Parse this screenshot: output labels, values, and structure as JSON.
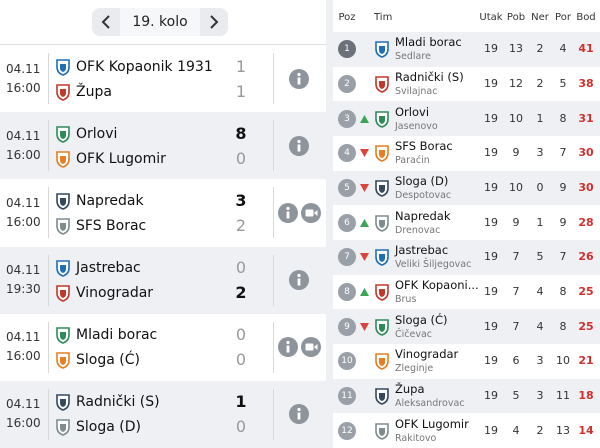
{
  "round_nav": {
    "label": "19. kolo"
  },
  "matches": [
    {
      "date": "04.11",
      "time": "16:00",
      "home": {
        "name": "OFK Kopaonik 1931",
        "score": 1
      },
      "away": {
        "name": "Župa",
        "score": 1
      },
      "video": false
    },
    {
      "date": "04.11",
      "time": "16:00",
      "home": {
        "name": "Orlovi",
        "score": 8
      },
      "away": {
        "name": "OFK Lugomir",
        "score": 0
      },
      "video": false
    },
    {
      "date": "04.11",
      "time": "16:00",
      "home": {
        "name": "Napredak",
        "score": 3
      },
      "away": {
        "name": "SFS Borac",
        "score": 2
      },
      "video": true
    },
    {
      "date": "04.11",
      "time": "19:30",
      "home": {
        "name": "Jastrebac",
        "score": 0
      },
      "away": {
        "name": "Vinogradar",
        "score": 2
      },
      "video": false
    },
    {
      "date": "04.11",
      "time": "16:00",
      "home": {
        "name": "Mladi borac",
        "score": 0
      },
      "away": {
        "name": "Sloga (Ć)",
        "score": 0
      },
      "video": true
    },
    {
      "date": "04.11",
      "time": "16:00",
      "home": {
        "name": "Radnički (S)",
        "score": 1
      },
      "away": {
        "name": "Sloga (D)",
        "score": 0
      },
      "video": false
    }
  ],
  "standings": {
    "columns": [
      "Poz",
      "Tim",
      "Utak",
      "Pob",
      "Ner",
      "Por",
      "Bod"
    ],
    "rows": [
      {
        "pos": 1,
        "team": "Mladi borac",
        "city": "Sedlare",
        "played": 19,
        "won": 13,
        "drawn": 2,
        "lost": 4,
        "points": 41
      },
      {
        "pos": 2,
        "team": "Radnički (S)",
        "city": "Svilajnac",
        "played": 19,
        "won": 12,
        "drawn": 2,
        "lost": 5,
        "points": 38
      },
      {
        "pos": 3,
        "team": "Orlovi",
        "city": "Jasenovo",
        "trend": "up",
        "played": 19,
        "won": 10,
        "drawn": 1,
        "lost": 8,
        "points": 31
      },
      {
        "pos": 4,
        "team": "SFS Borac",
        "city": "Paraćin",
        "trend": "down",
        "played": 19,
        "won": 9,
        "drawn": 3,
        "lost": 7,
        "points": 30
      },
      {
        "pos": 5,
        "team": "Sloga (D)",
        "city": "Despotovac",
        "trend": "down",
        "played": 19,
        "won": 10,
        "drawn": 0,
        "lost": 9,
        "points": 30
      },
      {
        "pos": 6,
        "team": "Napredak",
        "city": "Drenovac",
        "trend": "up",
        "played": 19,
        "won": 9,
        "drawn": 1,
        "lost": 9,
        "points": 28
      },
      {
        "pos": 7,
        "team": "Jastrebac",
        "city": "Veliki Šiljegovac",
        "trend": "down",
        "played": 19,
        "won": 7,
        "drawn": 5,
        "lost": 7,
        "points": 26
      },
      {
        "pos": 8,
        "team": "OFK Kopaoni...",
        "city": "Brus",
        "trend": "up",
        "played": 19,
        "won": 7,
        "drawn": 4,
        "lost": 8,
        "points": 25
      },
      {
        "pos": 9,
        "team": "Sloga (Ć)",
        "city": "Čičevac",
        "trend": "down",
        "played": 19,
        "won": 7,
        "drawn": 4,
        "lost": 8,
        "points": 25
      },
      {
        "pos": 10,
        "team": "Vinogradar",
        "city": "Zleginje",
        "played": 19,
        "won": 6,
        "drawn": 3,
        "lost": 10,
        "points": 21
      },
      {
        "pos": 11,
        "team": "Župa",
        "city": "Aleksandrovac",
        "played": 19,
        "won": 5,
        "drawn": 3,
        "lost": 11,
        "points": 18
      },
      {
        "pos": 12,
        "team": "OFK Lugomir",
        "city": "Rakitovo",
        "played": 19,
        "won": 4,
        "drawn": 2,
        "lost": 13,
        "points": 14
      }
    ]
  }
}
